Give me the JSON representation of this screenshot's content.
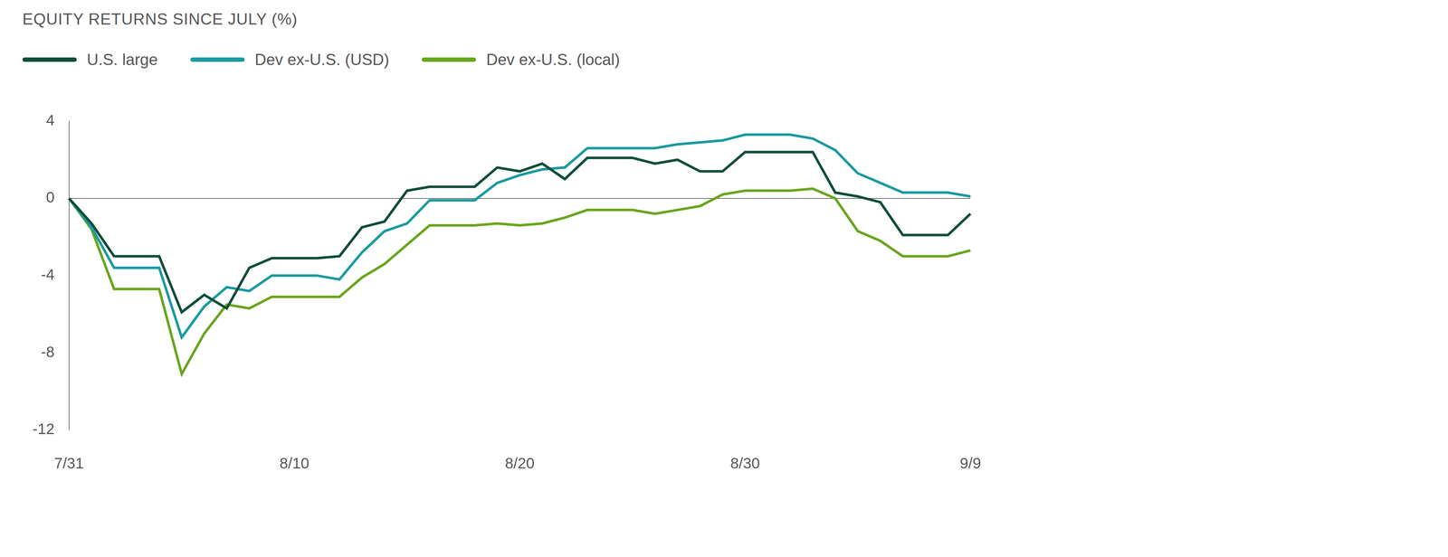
{
  "chart_data": {
    "type": "line",
    "title": "EQUITY RETURNS SINCE JULY (%)",
    "categories": [
      "7/31",
      null,
      null,
      null,
      null,
      null,
      null,
      null,
      null,
      null,
      "8/10",
      null,
      null,
      null,
      null,
      null,
      null,
      null,
      null,
      null,
      "8/20",
      null,
      null,
      null,
      null,
      null,
      null,
      null,
      null,
      null,
      "8/30",
      null,
      null,
      null,
      null,
      null,
      null,
      null,
      null,
      null,
      "9/9"
    ],
    "series": [
      {
        "name": "U.S. large",
        "color": "#0f4d3a",
        "values": [
          0,
          -1.3,
          -3.0,
          -3.0,
          -3.0,
          -5.9,
          -5.0,
          -5.7,
          -3.6,
          -3.1,
          -3.1,
          -3.1,
          -3.0,
          -1.5,
          -1.2,
          0.4,
          0.6,
          0.6,
          0.6,
          1.6,
          1.4,
          1.8,
          1.0,
          2.1,
          2.1,
          2.1,
          1.8,
          2.0,
          1.4,
          1.4,
          2.4,
          2.4,
          2.4,
          2.4,
          0.3,
          0.1,
          -0.2,
          -1.9,
          -1.9,
          -1.9,
          -0.8
        ]
      },
      {
        "name": "Dev ex-U.S. (USD)",
        "color": "#1a9aa0",
        "values": [
          0,
          -1.5,
          -3.6,
          -3.6,
          -3.6,
          -7.2,
          -5.6,
          -4.6,
          -4.8,
          -4.0,
          -4.0,
          -4.0,
          -4.2,
          -2.8,
          -1.7,
          -1.3,
          -0.1,
          -0.1,
          -0.1,
          0.8,
          1.2,
          1.5,
          1.6,
          2.6,
          2.6,
          2.6,
          2.6,
          2.8,
          2.9,
          3.0,
          3.3,
          3.3,
          3.3,
          3.1,
          2.5,
          1.3,
          0.8,
          0.3,
          0.3,
          0.3,
          0.1
        ]
      },
      {
        "name": "Dev ex-U.S. (local)",
        "color": "#6aa51e",
        "values": [
          0,
          -1.6,
          -4.7,
          -4.7,
          -4.7,
          -9.1,
          -7.0,
          -5.5,
          -5.7,
          -5.1,
          -5.1,
          -5.1,
          -5.1,
          -4.1,
          -3.4,
          -2.4,
          -1.4,
          -1.4,
          -1.4,
          -1.3,
          -1.4,
          -1.3,
          -1.0,
          -0.6,
          -0.6,
          -0.6,
          -0.8,
          -0.6,
          -0.4,
          0.2,
          0.4,
          0.4,
          0.4,
          0.5,
          0.0,
          -1.7,
          -2.2,
          -3.0,
          -3.0,
          -3.0,
          -2.7
        ]
      }
    ],
    "ylim": [
      -12,
      4
    ],
    "yticks": [
      -12,
      -8,
      -4,
      0,
      4
    ],
    "grid": false,
    "legend": "top"
  }
}
